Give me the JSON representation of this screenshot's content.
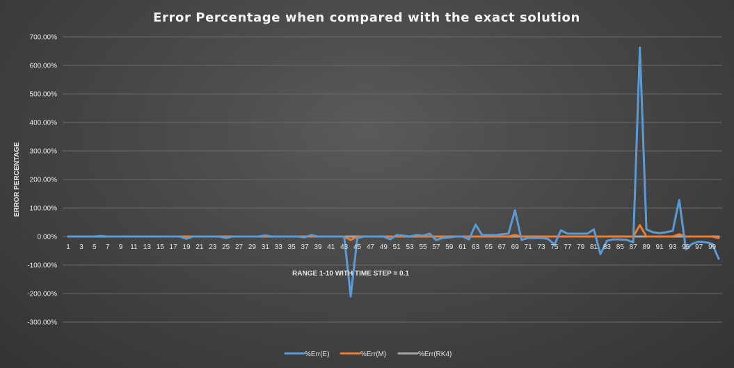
{
  "chart_data": {
    "type": "line",
    "title": "Error Percentage when compared with the exact solution",
    "ylabel": "ERROR PERCENTAGE",
    "xlabel": "RANGE 1-10 WITH TIME STEP = 0.1",
    "ylim": [
      -300,
      700
    ],
    "yticks": [
      700,
      600,
      500,
      400,
      300,
      200,
      100,
      0,
      -100,
      -200,
      -300
    ],
    "ytick_labels": [
      "700.00%",
      "600.00%",
      "500.00%",
      "400.00%",
      "300.00%",
      "200.00%",
      "100.00%",
      "0.00%",
      "-100.00%",
      "-200.00%",
      "-300.00%"
    ],
    "x_tick_labels": [
      "1",
      "3",
      "5",
      "7",
      "9",
      "11",
      "13",
      "15",
      "17",
      "19",
      "21",
      "23",
      "25",
      "27",
      "29",
      "31",
      "33",
      "35",
      "37",
      "39",
      "41",
      "43",
      "45",
      "47",
      "49",
      "51",
      "53",
      "55",
      "57",
      "59",
      "61",
      "63",
      "65",
      "67",
      "69",
      "71",
      "73",
      "75",
      "77",
      "79",
      "81",
      "83",
      "85",
      "87",
      "89",
      "91",
      "93",
      "95",
      "97",
      "99"
    ],
    "grid": true,
    "legend_position": "bottom",
    "series": [
      {
        "name": "%Err(E)",
        "color": "#5b9bd5",
        "values": [
          0,
          0,
          0,
          0,
          0,
          2,
          0,
          0,
          0,
          0,
          0,
          0,
          0,
          0,
          0,
          0,
          0,
          0,
          -8,
          0,
          0,
          0,
          0,
          0,
          -5,
          0,
          0,
          0,
          0,
          0,
          4,
          0,
          0,
          0,
          0,
          0,
          -3,
          5,
          0,
          0,
          0,
          0,
          0,
          -210,
          -5,
          0,
          0,
          0,
          0,
          -10,
          5,
          3,
          0,
          5,
          3,
          10,
          -12,
          -5,
          -3,
          0,
          0,
          -10,
          42,
          5,
          5,
          5,
          8,
          10,
          92,
          -12,
          -5,
          -5,
          -5,
          -8,
          -28,
          22,
          10,
          10,
          10,
          10,
          25,
          -62,
          -15,
          -10,
          -10,
          -12,
          -20,
          663,
          25,
          15,
          12,
          15,
          20,
          128,
          -45,
          -25,
          -18,
          -20,
          -25,
          -78
        ],
        "labels": [
          "1",
          "2",
          "3",
          "4",
          "5",
          "6",
          "7",
          "8",
          "9",
          "10",
          "11",
          "12",
          "13",
          "14",
          "15",
          "16",
          "17",
          "18",
          "19",
          "20",
          "21",
          "22",
          "23",
          "24",
          "25",
          "26",
          "27",
          "28",
          "29",
          "30",
          "31",
          "32",
          "33",
          "34",
          "35",
          "36",
          "37",
          "38",
          "39",
          "40",
          "41",
          "42",
          "43",
          "44",
          "45",
          "46",
          "47",
          "48",
          "49",
          "50",
          "51",
          "52",
          "53",
          "54",
          "55",
          "56",
          "57",
          "58",
          "59",
          "60",
          "61",
          "62",
          "63",
          "64",
          "65",
          "66",
          "67",
          "68",
          "69",
          "70",
          "71",
          "72",
          "73",
          "74",
          "75",
          "76",
          "77",
          "78",
          "79",
          "80",
          "81",
          "82",
          "83",
          "84",
          "85",
          "86",
          "87",
          "88",
          "89",
          "90",
          "91",
          "92",
          "93",
          "94",
          "95",
          "96",
          "97",
          "98",
          "99",
          "100"
        ]
      },
      {
        "name": "%Err(M)",
        "color": "#ed7d31",
        "values": [
          0,
          0,
          0,
          0,
          0,
          0,
          0,
          0,
          0,
          0,
          0,
          0,
          0,
          0,
          0,
          0,
          0,
          0,
          0,
          0,
          0,
          0,
          0,
          0,
          0,
          0,
          0,
          0,
          0,
          0,
          0,
          0,
          0,
          0,
          0,
          0,
          0,
          0,
          0,
          0,
          0,
          0,
          0,
          -12,
          0,
          0,
          0,
          0,
          0,
          0,
          0,
          0,
          0,
          0,
          0,
          0,
          0,
          0,
          0,
          0,
          0,
          0,
          0,
          0,
          0,
          0,
          0,
          0,
          5,
          0,
          0,
          0,
          0,
          0,
          0,
          0,
          0,
          0,
          0,
          0,
          0,
          0,
          0,
          0,
          0,
          0,
          0,
          40,
          0,
          0,
          0,
          0,
          0,
          8,
          0,
          0,
          0,
          0,
          0,
          -5
        ]
      },
      {
        "name": "%Err(RK4)",
        "color": "#a5a5a5",
        "values": [
          0,
          0,
          0,
          0,
          0,
          0,
          0,
          0,
          0,
          0,
          0,
          0,
          0,
          0,
          0,
          0,
          0,
          0,
          0,
          0,
          0,
          0,
          0,
          0,
          0,
          0,
          0,
          0,
          0,
          0,
          0,
          0,
          0,
          0,
          0,
          0,
          0,
          0,
          0,
          0,
          0,
          0,
          0,
          0,
          0,
          0,
          0,
          0,
          0,
          0,
          0,
          0,
          0,
          0,
          0,
          0,
          0,
          0,
          0,
          0,
          0,
          0,
          0,
          0,
          0,
          0,
          0,
          0,
          0,
          0,
          0,
          0,
          0,
          0,
          0,
          0,
          0,
          0,
          0,
          0,
          0,
          0,
          0,
          0,
          0,
          0,
          0,
          0,
          0,
          0,
          0,
          0,
          0,
          0,
          0,
          0,
          0,
          0,
          0,
          0
        ]
      }
    ]
  }
}
